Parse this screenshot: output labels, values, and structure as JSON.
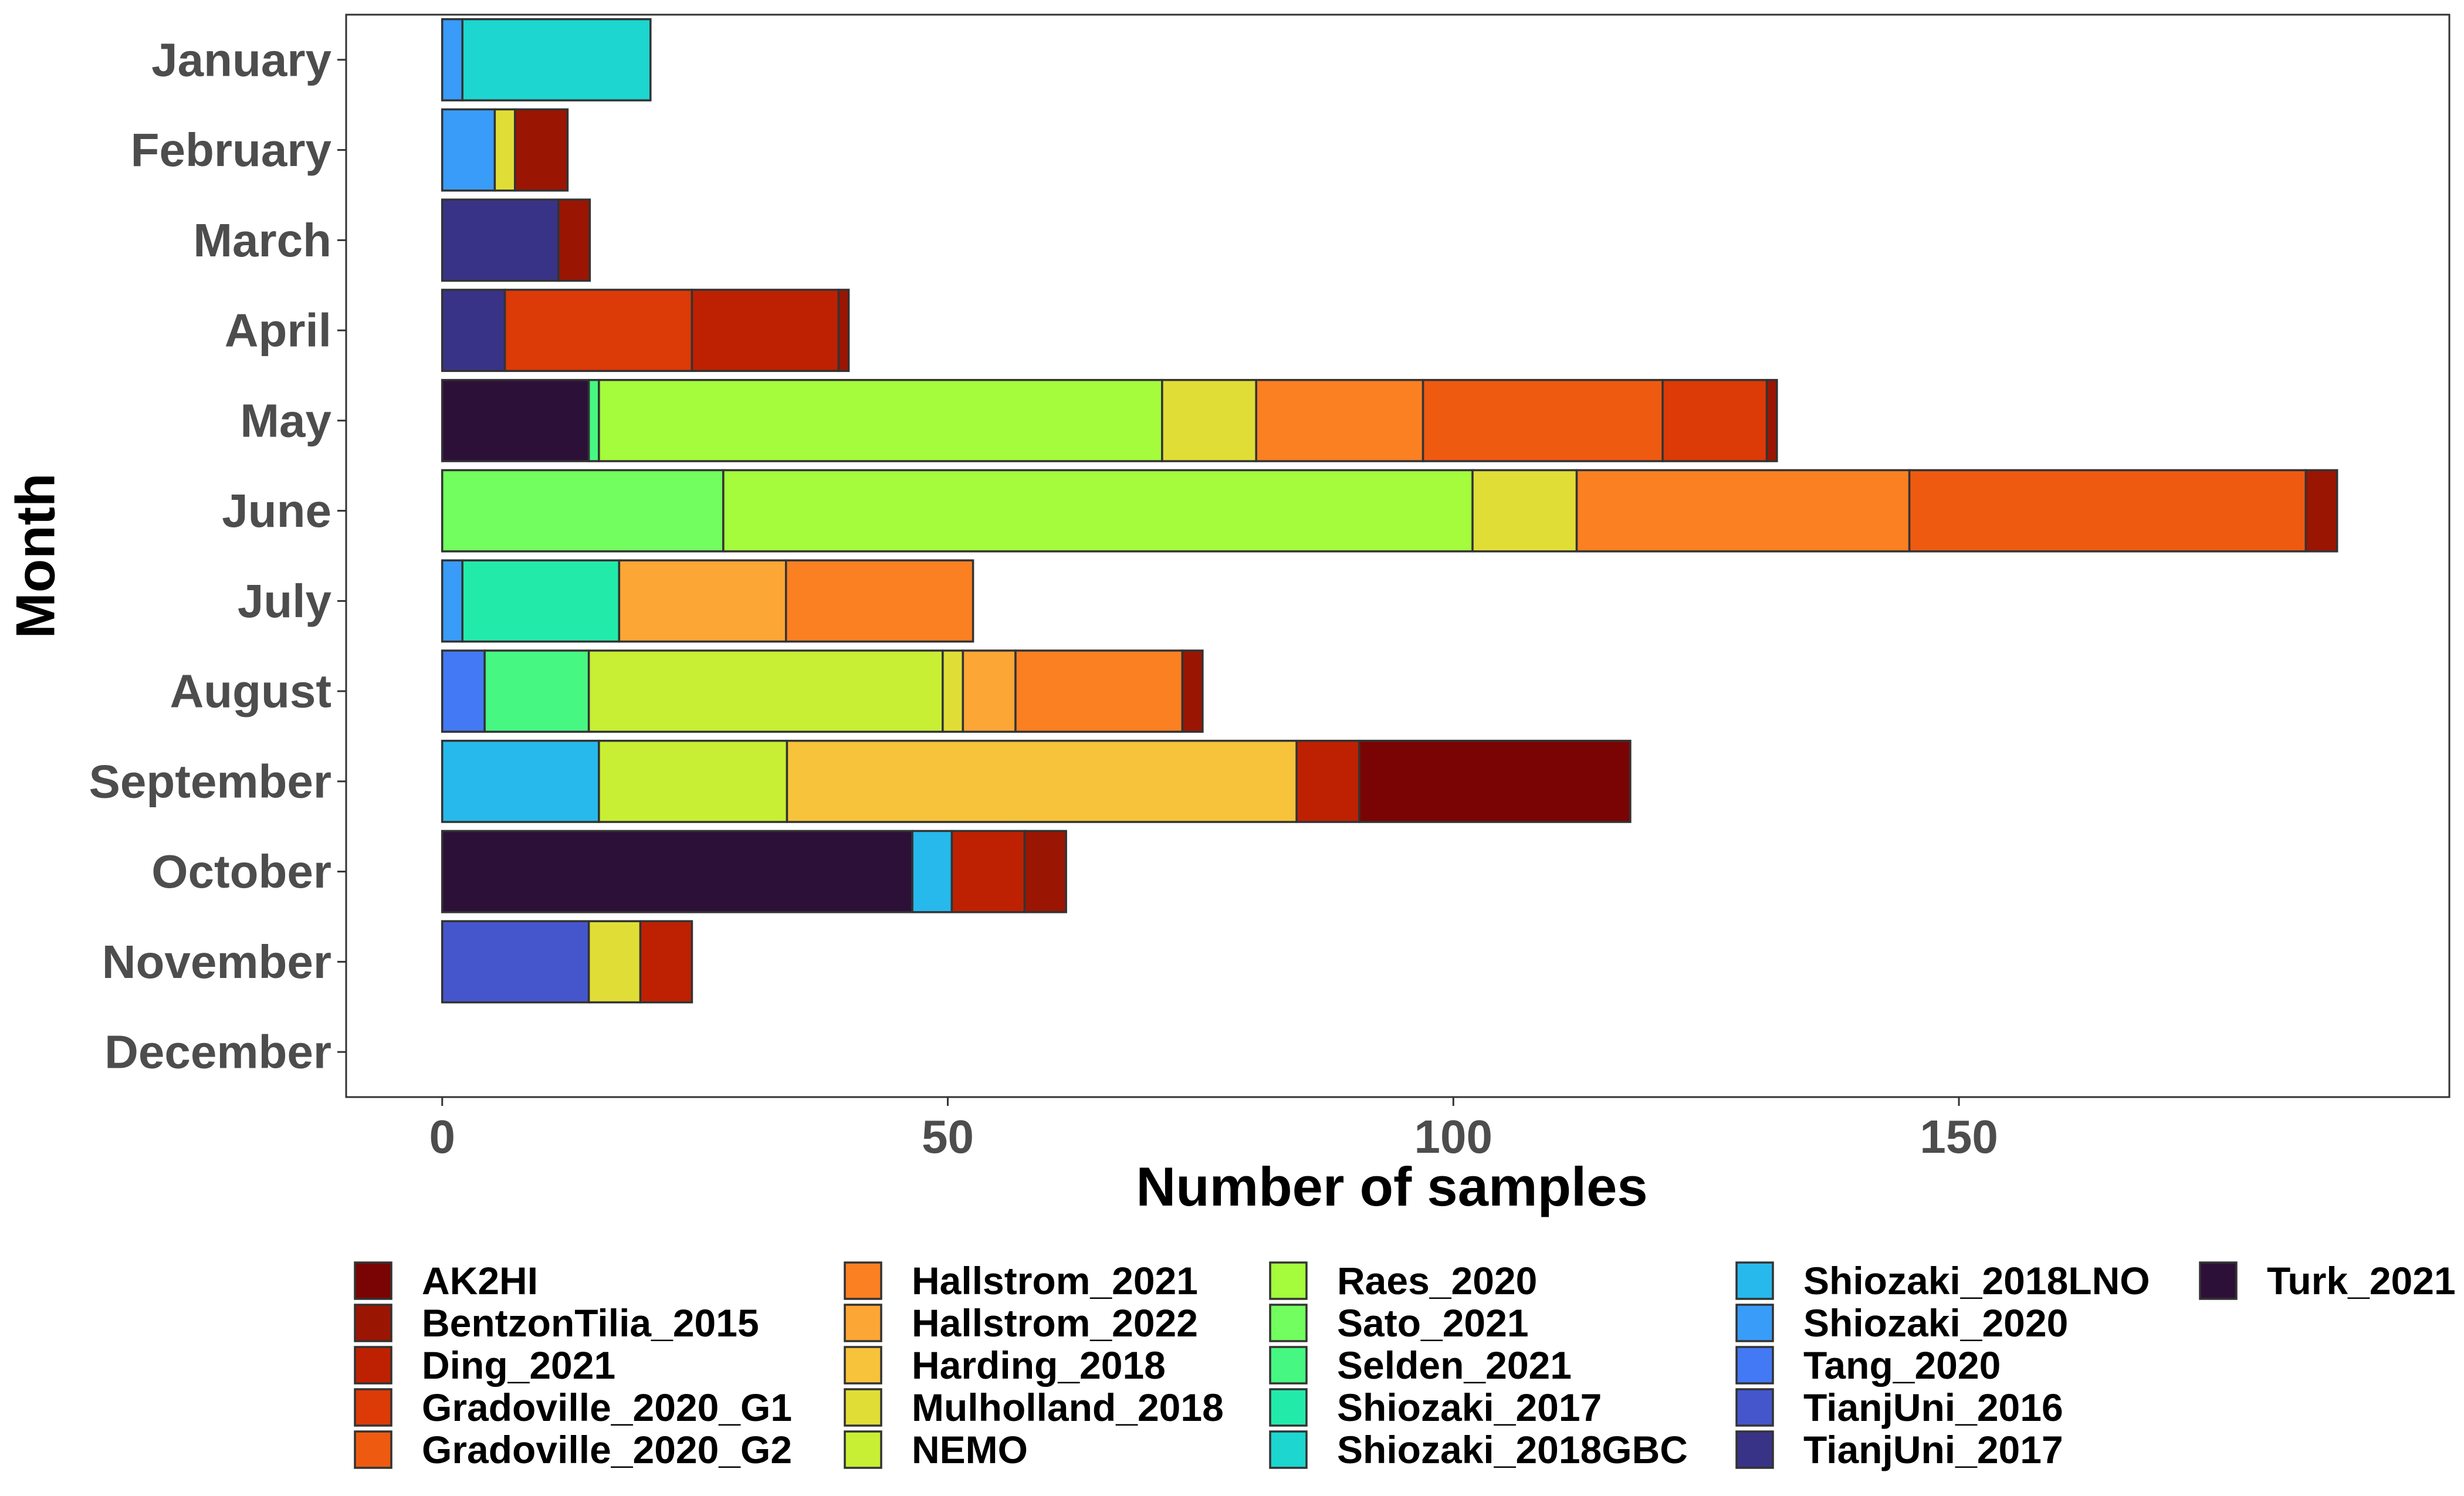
{
  "chart_data": {
    "type": "bar",
    "orientation": "horizontal",
    "stacked": true,
    "xlabel": "Number of samples",
    "ylabel": "Month",
    "xlim": [
      -9.5,
      198.5
    ],
    "xticks": [
      0,
      50,
      100,
      150
    ],
    "grid": false,
    "legend_position": "bottom",
    "categories": [
      "January",
      "February",
      "March",
      "April",
      "May",
      "June",
      "July",
      "August",
      "September",
      "October",
      "November",
      "December"
    ],
    "series": [
      {
        "name": "Turk_2021",
        "color": "#2d1038",
        "values": [
          0,
          0,
          0,
          0,
          14.5,
          0,
          0,
          0,
          0,
          46.5,
          0,
          0
        ]
      },
      {
        "name": "TianjUni_2017",
        "color": "#393387",
        "values": [
          0,
          0,
          11.5,
          6.2,
          0,
          0,
          0,
          0,
          0,
          0,
          0,
          0
        ]
      },
      {
        "name": "TianjUni_2016",
        "color": "#4556cc",
        "values": [
          0,
          0,
          0,
          0,
          0,
          0,
          0,
          0,
          0,
          0,
          14.5,
          0
        ]
      },
      {
        "name": "Tang_2020",
        "color": "#4479f5",
        "values": [
          0,
          0,
          0,
          0,
          0,
          0,
          0,
          4.2,
          0,
          0,
          0,
          0
        ]
      },
      {
        "name": "Shiozaki_2020",
        "color": "#399cf9",
        "values": [
          2.0,
          5.2,
          0,
          0,
          0,
          0,
          2.0,
          0,
          0,
          0,
          0,
          0
        ]
      },
      {
        "name": "Shiozaki_2018LNO",
        "color": "#27b9ec",
        "values": [
          0,
          0,
          0,
          0,
          0,
          0,
          0,
          0,
          15.5,
          3.9,
          0,
          0
        ]
      },
      {
        "name": "Shiozaki_2018GBC",
        "color": "#1cd6cf",
        "values": [
          18.6,
          0,
          0,
          0,
          0,
          0,
          0,
          0,
          0,
          0,
          0,
          0
        ]
      },
      {
        "name": "Shiozaki_2017",
        "color": "#22ebaa",
        "values": [
          0,
          0,
          0,
          0,
          0,
          0,
          15.5,
          0,
          0,
          0,
          0,
          0
        ]
      },
      {
        "name": "Selden_2021",
        "color": "#46f882",
        "values": [
          0,
          0,
          0,
          0,
          1.0,
          0,
          0,
          10.3,
          0,
          0,
          0,
          0
        ]
      },
      {
        "name": "Sato_2021",
        "color": "#72fe5e",
        "values": [
          0,
          0,
          0,
          0,
          0,
          27.8,
          0,
          0,
          0,
          0,
          0,
          0
        ]
      },
      {
        "name": "Raes_2020",
        "color": "#a4fc3c",
        "values": [
          0,
          0,
          0,
          0,
          55.7,
          74.1,
          0,
          0,
          0,
          0,
          0,
          0
        ]
      },
      {
        "name": "NEMO",
        "color": "#c8ef34",
        "values": [
          0,
          0,
          0,
          0,
          0,
          0,
          0,
          35.0,
          18.6,
          0,
          0,
          0
        ]
      },
      {
        "name": "Mulholland_2018",
        "color": "#e1dd37",
        "values": [
          0,
          2.0,
          0,
          0,
          9.3,
          10.3,
          0,
          2.0,
          0,
          0,
          5.1,
          0
        ]
      },
      {
        "name": "Harding_2018",
        "color": "#f6c33a",
        "values": [
          0,
          0,
          0,
          0,
          0,
          0,
          0,
          0,
          50.4,
          0,
          0,
          0
        ]
      },
      {
        "name": "Hallstrom_2022",
        "color": "#fca635",
        "values": [
          0,
          0,
          0,
          0,
          0,
          0,
          16.5,
          5.2,
          0,
          0,
          0,
          0
        ]
      },
      {
        "name": "Hallstrom_2021",
        "color": "#fb8022",
        "values": [
          0,
          0,
          0,
          0,
          16.5,
          32.9,
          18.5,
          16.5,
          0,
          0,
          0,
          0
        ]
      },
      {
        "name": "Gradoville_2020_G2",
        "color": "#ef5a11",
        "values": [
          0,
          0,
          0,
          0,
          23.7,
          39.2,
          0,
          0,
          0,
          0,
          0,
          0
        ]
      },
      {
        "name": "Gradoville_2020_G1",
        "color": "#dc3a07",
        "values": [
          0,
          0,
          0,
          18.5,
          10.3,
          0,
          0,
          0,
          0,
          0,
          0,
          0
        ]
      },
      {
        "name": "Ding_2021",
        "color": "#be2102",
        "values": [
          0,
          0,
          0,
          14.5,
          0,
          0,
          0,
          0,
          6.2,
          7.2,
          5.1,
          0
        ]
      },
      {
        "name": "BentzonTilia_2015",
        "color": "#9b1503",
        "values": [
          0,
          5.2,
          3.1,
          1.0,
          1.0,
          3.1,
          0,
          2.0,
          0,
          4.1,
          0,
          0
        ]
      },
      {
        "name": "AK2HI",
        "color": "#7a0403",
        "values": [
          0,
          0,
          0,
          0,
          0,
          0,
          0,
          0,
          26.8,
          0,
          0,
          0
        ]
      }
    ],
    "legend_columns": [
      [
        "AK2HI",
        "BentzonTilia_2015",
        "Ding_2021",
        "Gradoville_2020_G1",
        "Gradoville_2020_G2"
      ],
      [
        "Hallstrom_2021",
        "Hallstrom_2022",
        "Harding_2018",
        "Mulholland_2018",
        "NEMO"
      ],
      [
        "Raes_2020",
        "Sato_2021",
        "Selden_2021",
        "Shiozaki_2017",
        "Shiozaki_2018GBC"
      ],
      [
        "Shiozaki_2018LNO",
        "Shiozaki_2020",
        "Tang_2020",
        "TianjUni_2016",
        "TianjUni_2017"
      ],
      [
        "Turk_2021"
      ]
    ],
    "colors": {
      "axis_text": "#4d4d4d",
      "axis_title": "#000000",
      "bar_outline": "#333333",
      "panel_border": "#333333",
      "background": "#ffffff"
    }
  }
}
